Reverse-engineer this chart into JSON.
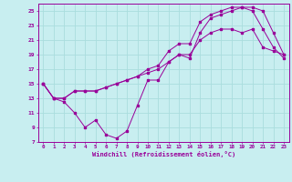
{
  "xlabel": "Windchill (Refroidissement éolien,°C)",
  "xlim": [
    -0.5,
    23.5
  ],
  "ylim": [
    7,
    26
  ],
  "yticks": [
    7,
    9,
    11,
    13,
    15,
    17,
    19,
    21,
    23,
    25
  ],
  "xticks": [
    0,
    1,
    2,
    3,
    4,
    5,
    6,
    7,
    8,
    9,
    10,
    11,
    12,
    13,
    14,
    15,
    16,
    17,
    18,
    19,
    20,
    21,
    22,
    23
  ],
  "background_color": "#c8eef0",
  "line_color": "#990099",
  "grid_color": "#aadddd",
  "line1_x": [
    0,
    1,
    2,
    3,
    4,
    5,
    6,
    7,
    8,
    9,
    10,
    11,
    12,
    13,
    14,
    15,
    16,
    17,
    18,
    19,
    20,
    21,
    22,
    23
  ],
  "line1_y": [
    15,
    13,
    12.5,
    11,
    9,
    10,
    8,
    7.5,
    8.5,
    12,
    15.5,
    15.5,
    18,
    19,
    19,
    21,
    22,
    22.5,
    22.5,
    22,
    22.5,
    20,
    19.5,
    19
  ],
  "line2_x": [
    0,
    1,
    2,
    3,
    4,
    5,
    6,
    7,
    8,
    9,
    10,
    11,
    12,
    13,
    14,
    15,
    16,
    17,
    18,
    19,
    20,
    21,
    22,
    23
  ],
  "line2_y": [
    15,
    13,
    13,
    14,
    14,
    14,
    14.5,
    15,
    15.5,
    16,
    16.5,
    17,
    18,
    19,
    18.5,
    22,
    24,
    24.5,
    25,
    25.5,
    25,
    22.5,
    20,
    18.5
  ],
  "line3_x": [
    0,
    1,
    2,
    3,
    4,
    5,
    6,
    7,
    8,
    9,
    10,
    11,
    12,
    13,
    14,
    15,
    16,
    17,
    18,
    19,
    20,
    21,
    22,
    23
  ],
  "line3_y": [
    15,
    13,
    13,
    14,
    14,
    14,
    14.5,
    15,
    15.5,
    16,
    17,
    17.5,
    19.5,
    20.5,
    20.5,
    23.5,
    24.5,
    25,
    25.5,
    25.5,
    25.5,
    25,
    22,
    19
  ]
}
